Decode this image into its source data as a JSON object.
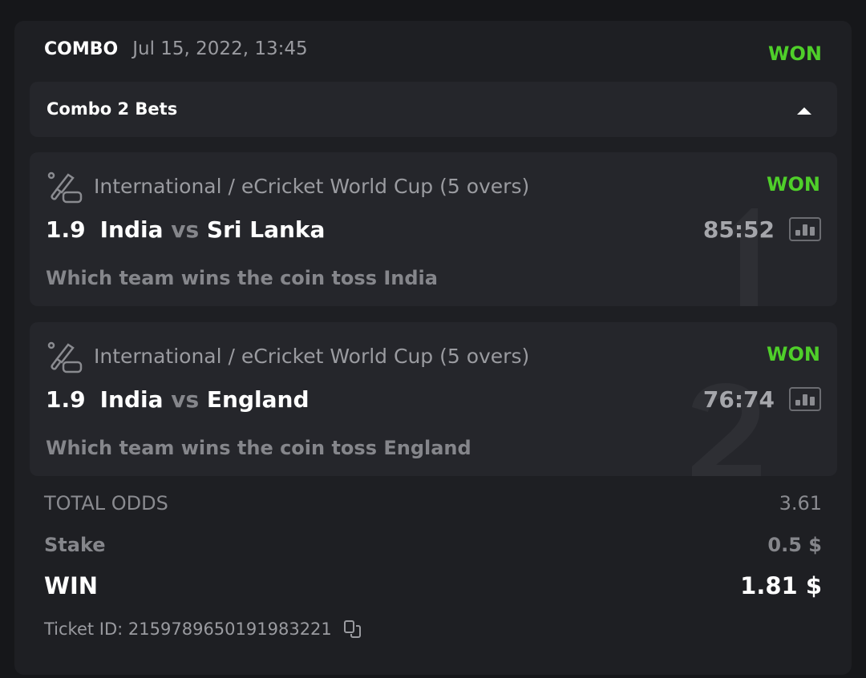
{
  "ticket": {
    "type": "COMBO",
    "datetime": "Jul 15, 2022, 13:45",
    "status": "WON",
    "status_color": "#4fcf2a"
  },
  "combo_bar": {
    "label": "Combo 2 Bets",
    "toggle_icon": "caret-up-icon"
  },
  "bets": [
    {
      "index": "1",
      "league": "International / eCricket World Cup (5 overs)",
      "status": "WON",
      "odds": "1.9",
      "home": "India",
      "vs": "vs",
      "away": "Sri Lanka",
      "score": "85:52",
      "selection": "Which team wins the coin toss India"
    },
    {
      "index": "2",
      "league": "International / eCricket World Cup (5 overs)",
      "status": "WON",
      "odds": "1.9",
      "home": "India",
      "vs": "vs",
      "away": "England",
      "score": "76:74",
      "selection": "Which team wins the coin toss England"
    }
  ],
  "summary": {
    "total_odds_label": "TOTAL ODDS",
    "total_odds": "3.61",
    "stake_label": "Stake",
    "stake": "0.5 $",
    "win_label": "WIN",
    "win": "1.81 $"
  },
  "ticket_id": "Ticket ID: 2159789650191983221"
}
